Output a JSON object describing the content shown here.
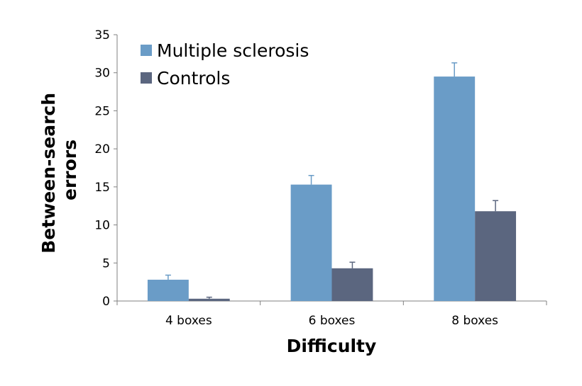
{
  "chart_data": {
    "type": "bar",
    "categories": [
      "4 boxes",
      "6 boxes",
      "8 boxes"
    ],
    "series": [
      {
        "name": "Multiple sclerosis",
        "color": "#6a9cc7",
        "values": [
          2.8,
          15.3,
          29.5
        ],
        "errors": [
          0.6,
          1.2,
          1.8
        ]
      },
      {
        "name": "Controls",
        "color": "#5b667f",
        "values": [
          0.3,
          4.3,
          11.8
        ],
        "errors": [
          0.2,
          0.8,
          1.4
        ]
      }
    ],
    "xlabel": "Difficulty",
    "ylabel_lines": [
      "Between-search",
      "errors"
    ],
    "ylim": [
      0,
      35
    ],
    "yticks": [
      "0",
      "5",
      "10",
      "15",
      "20",
      "25",
      "30",
      "35"
    ],
    "grid": false,
    "legend_position": "top-left"
  }
}
